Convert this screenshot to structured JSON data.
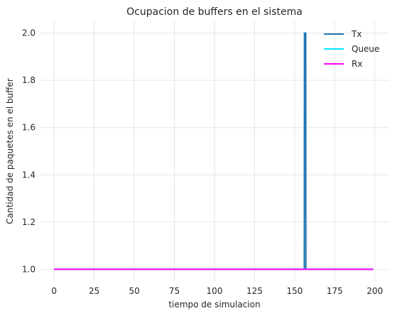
{
  "chart_data": {
    "type": "line",
    "title": "Ocupacion de buffers en el sistema",
    "xlabel": "tiempo de simulacion",
    "ylabel": "Cantidad de paquetes en el buffer",
    "xlim": [
      -8.95,
      208.95
    ],
    "ylim": [
      0.95,
      2.05
    ],
    "xticks": [
      0,
      25,
      50,
      75,
      100,
      125,
      150,
      175,
      200
    ],
    "yticks": [
      1.0,
      1.2,
      1.4,
      1.6,
      1.8,
      2.0
    ],
    "ytick_labels": [
      "1.0",
      "1.2",
      "1.4",
      "1.6",
      "1.8",
      "2.0"
    ],
    "grid": true,
    "legend": "top-right",
    "series": [
      {
        "name": "Tx",
        "color": "#1f77b4",
        "x": [
          0,
          156,
          156.1,
          156.9,
          157,
          199
        ],
        "y": [
          1,
          1,
          2,
          2,
          1,
          1
        ]
      },
      {
        "name": "Queue",
        "color": "#00e5ff",
        "x": [
          0,
          199
        ],
        "y": [
          1,
          1
        ]
      },
      {
        "name": "Rx",
        "color": "#ff00ff",
        "x": [
          0,
          199
        ],
        "y": [
          1,
          1
        ]
      }
    ]
  }
}
